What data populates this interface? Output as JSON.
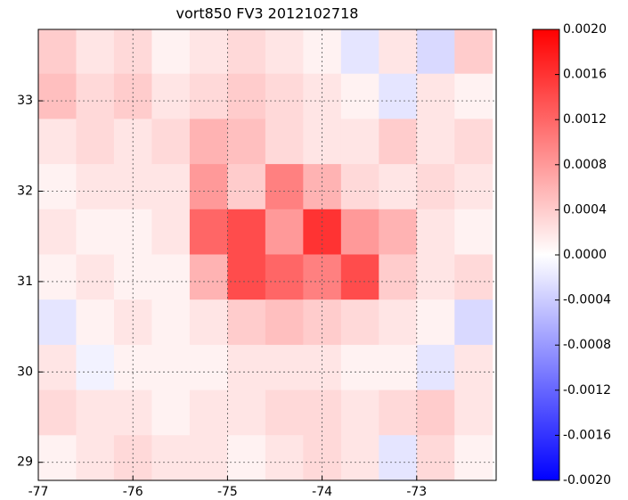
{
  "chart_data": {
    "type": "heatmap",
    "title": "vort850 FV3 2012102718",
    "x": [
      -76.8,
      -76.4,
      -76.0,
      -75.6,
      -75.2,
      -74.8,
      -74.4,
      -74.0,
      -73.6,
      -73.2,
      -72.8,
      -72.4
    ],
    "y": [
      33.55,
      33.05,
      32.55,
      32.05,
      31.55,
      31.05,
      30.55,
      30.05,
      29.55,
      29.05
    ],
    "z": [
      [
        0.0004,
        0.0002,
        0.0003,
        0.0001,
        0.0002,
        0.0003,
        0.0002,
        0.0001,
        -0.0002,
        0.0002,
        -0.0003,
        0.0004
      ],
      [
        0.0005,
        0.0003,
        0.0004,
        0.0002,
        0.0003,
        0.0004,
        0.0003,
        0.0002,
        0.0001,
        -0.0002,
        0.0002,
        0.0001
      ],
      [
        0.0002,
        0.0003,
        0.0002,
        0.0003,
        0.0006,
        0.0005,
        0.0003,
        0.0002,
        0.0002,
        0.0004,
        0.0002,
        0.0003
      ],
      [
        0.0001,
        0.0002,
        0.0002,
        0.0002,
        0.0008,
        0.0004,
        0.001,
        0.0006,
        0.0003,
        0.0002,
        0.0003,
        0.0002
      ],
      [
        0.0002,
        0.0001,
        0.0001,
        0.0002,
        0.0012,
        0.0014,
        0.0008,
        0.0016,
        0.0008,
        0.0006,
        0.0002,
        0.0001
      ],
      [
        0.0001,
        0.0002,
        0.0001,
        0.0001,
        0.0006,
        0.0014,
        0.0012,
        0.001,
        0.0014,
        0.0004,
        0.0002,
        0.0003
      ],
      [
        -0.0002,
        0.0001,
        0.0002,
        0.0001,
        0.0002,
        0.0004,
        0.0005,
        0.0004,
        0.0003,
        0.0002,
        0.0001,
        -0.0003
      ],
      [
        0.0002,
        -0.0001,
        0.0001,
        0.0001,
        0.0001,
        0.0002,
        0.0002,
        0.0002,
        0.0001,
        0.0001,
        -0.0002,
        0.0002
      ],
      [
        0.0003,
        0.0002,
        0.0002,
        0.0001,
        0.0002,
        0.0002,
        0.0003,
        0.0003,
        0.0002,
        0.0003,
        0.0004,
        0.0002
      ],
      [
        0.0001,
        0.0002,
        0.0003,
        0.0002,
        0.0002,
        0.0001,
        0.0002,
        0.0003,
        0.0002,
        -0.0002,
        0.0003,
        0.0001
      ]
    ],
    "xlim": [
      -77,
      -72.16
    ],
    "ylim": [
      28.8,
      33.79
    ],
    "xticks": [
      -77,
      -76,
      -75,
      -74,
      -73
    ],
    "yticks": [
      29,
      30,
      31,
      32,
      33
    ],
    "grid": true,
    "colormap": "bwr",
    "clim": [
      -0.002,
      0.002
    ],
    "cticks": [
      {
        "value": 0.002,
        "label": "0.0020"
      },
      {
        "value": 0.0016,
        "label": "0.0016"
      },
      {
        "value": 0.0012,
        "label": "0.0012"
      },
      {
        "value": 0.0008,
        "label": "0.0008"
      },
      {
        "value": 0.0004,
        "label": "0.0004"
      },
      {
        "value": 0,
        "label": "0.0000"
      },
      {
        "value": -0.0004,
        "label": "-0.0004"
      },
      {
        "value": -0.0008,
        "label": "-0.0008"
      },
      {
        "value": -0.0012,
        "label": "-0.0012"
      },
      {
        "value": -0.0016,
        "label": "-0.0016"
      },
      {
        "value": -0.002,
        "label": "-0.0020"
      }
    ]
  }
}
